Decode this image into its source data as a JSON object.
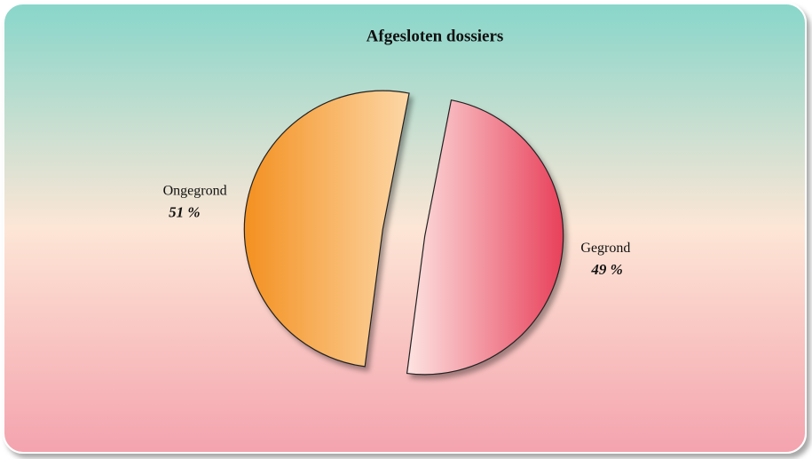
{
  "chart_data": {
    "type": "pie",
    "title": "Afgesloten dossiers",
    "categories": [
      "Gegrond",
      "Ongegrond"
    ],
    "values": [
      49,
      51
    ],
    "value_labels": [
      "49 %",
      "51 %"
    ],
    "colors": [
      "#e8405a",
      "#f39020"
    ]
  }
}
